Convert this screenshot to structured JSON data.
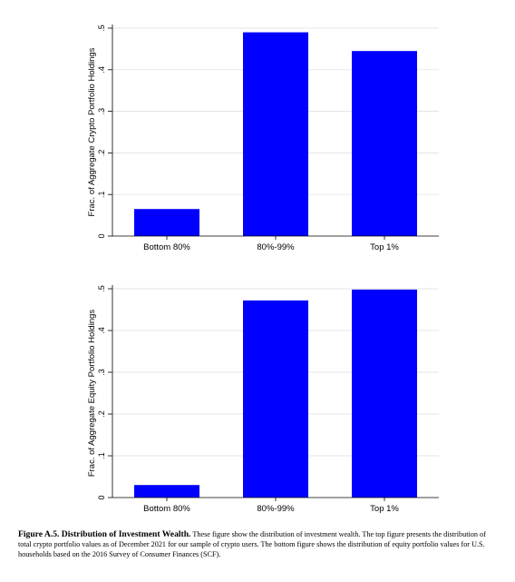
{
  "chart_data": [
    {
      "type": "bar",
      "categories": [
        "Bottom 80%",
        "80%-99%",
        "Top 1%"
      ],
      "values": [
        0.065,
        0.49,
        0.445
      ],
      "ylabel": "Frac. of Aggregate Crypto Portfolio Holdings",
      "xlabel": "",
      "ylim": [
        0,
        0.5
      ],
      "yticks": [
        0,
        0.1,
        0.2,
        0.3,
        0.4,
        0.5
      ],
      "ytick_labels": [
        "0",
        ".1",
        ".2",
        ".3",
        ".4",
        ".5"
      ],
      "grid": true,
      "bar_color": "#0000ff"
    },
    {
      "type": "bar",
      "categories": [
        "Bottom 80%",
        "80%-99%",
        "Top 1%"
      ],
      "values": [
        0.03,
        0.472,
        0.498
      ],
      "ylabel": "Frac. of Aggregate Equity Portfolio Holdings",
      "xlabel": "",
      "ylim": [
        0,
        0.5
      ],
      "yticks": [
        0,
        0.1,
        0.2,
        0.3,
        0.4,
        0.5
      ],
      "ytick_labels": [
        "0",
        ".1",
        ".2",
        ".3",
        ".4",
        ".5"
      ],
      "grid": true,
      "bar_color": "#0000ff"
    }
  ],
  "caption": {
    "figure_label": "Figure A.5. Distribution of Investment Wealth.",
    "text": "These figure show the distribution of investment wealth. The top figure presents the distribution of total crypto portfolio values as of December 2021 for our sample of crypto users. The bottom figure shows the distribution of equity portfolio values for U.S. households based on the 2016 Survey of Consumer Finances (SCF)."
  }
}
